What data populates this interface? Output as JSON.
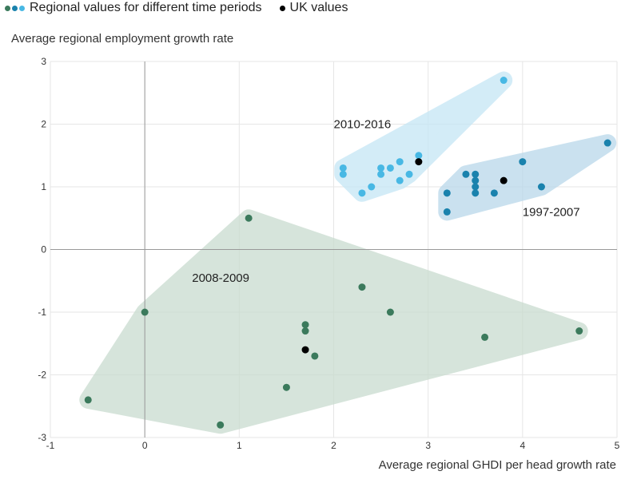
{
  "legend": {
    "regional_label": "Regional values for different time periods",
    "uk_label": "UK values"
  },
  "colors": {
    "green": "#3b7a5c",
    "dark_blue": "#1a82ad",
    "light_blue": "#48b8e4",
    "uk": "#000000",
    "green_hull": "#c9dccf",
    "blue_hull": "#b9d8ea",
    "light_hull": "#c5e6f5",
    "grid": "#e6e6e6",
    "axis": "#999999"
  },
  "chart_data": {
    "type": "scatter",
    "xlabel": "Average regional GHDI per head growth rate",
    "ylabel": "Average regional employment growth rate",
    "xlim": [
      -1,
      5
    ],
    "ylim": [
      -3,
      3
    ],
    "x_ticks": [
      -1,
      0,
      1,
      2,
      3,
      4,
      5
    ],
    "y_ticks": [
      -3,
      -2,
      -1,
      0,
      1,
      2,
      3
    ],
    "grid": true,
    "legend_position": "top-left",
    "groups": [
      {
        "label": "2008-2009",
        "color_key": "green",
        "hull_key": "green_hull",
        "label_pos": [
          0.5,
          -0.45
        ],
        "points": [
          [
            1.1,
            0.5
          ],
          [
            0,
            -1
          ],
          [
            -0.6,
            -2.4
          ],
          [
            0.8,
            -2.8
          ],
          [
            1.5,
            -2.2
          ],
          [
            1.7,
            -1.2
          ],
          [
            1.7,
            -1.3
          ],
          [
            1.8,
            -1.7
          ],
          [
            2.3,
            -0.6
          ],
          [
            2.6,
            -1.0
          ],
          [
            3.6,
            -1.4
          ],
          [
            4.6,
            -1.3
          ]
        ],
        "uk": [
          1.7,
          -1.6
        ]
      },
      {
        "label": "2010-2016",
        "color_key": "light_blue",
        "hull_key": "light_hull",
        "label_pos": [
          2.0,
          2.0
        ],
        "points": [
          [
            3.8,
            2.7
          ],
          [
            2.1,
            1.3
          ],
          [
            2.1,
            1.2
          ],
          [
            2.3,
            0.9
          ],
          [
            2.4,
            1.0
          ],
          [
            2.5,
            1.3
          ],
          [
            2.5,
            1.2
          ],
          [
            2.6,
            1.3
          ],
          [
            2.7,
            1.4
          ],
          [
            2.7,
            1.1
          ],
          [
            2.8,
            1.2
          ],
          [
            2.9,
            1.5
          ]
        ],
        "uk": [
          2.9,
          1.4
        ]
      },
      {
        "label": "1997-2007",
        "color_key": "dark_blue",
        "hull_key": "blue_hull",
        "label_pos": [
          4.0,
          0.6
        ],
        "points": [
          [
            3.2,
            0.9
          ],
          [
            3.2,
            0.6
          ],
          [
            3.4,
            1.2
          ],
          [
            3.5,
            1.2
          ],
          [
            3.5,
            1.1
          ],
          [
            3.5,
            1.0
          ],
          [
            3.5,
            0.9
          ],
          [
            3.7,
            0.9
          ],
          [
            4.0,
            1.4
          ],
          [
            4.2,
            1.0
          ],
          [
            4.9,
            1.7
          ]
        ],
        "uk": [
          3.8,
          1.1
        ]
      }
    ]
  }
}
